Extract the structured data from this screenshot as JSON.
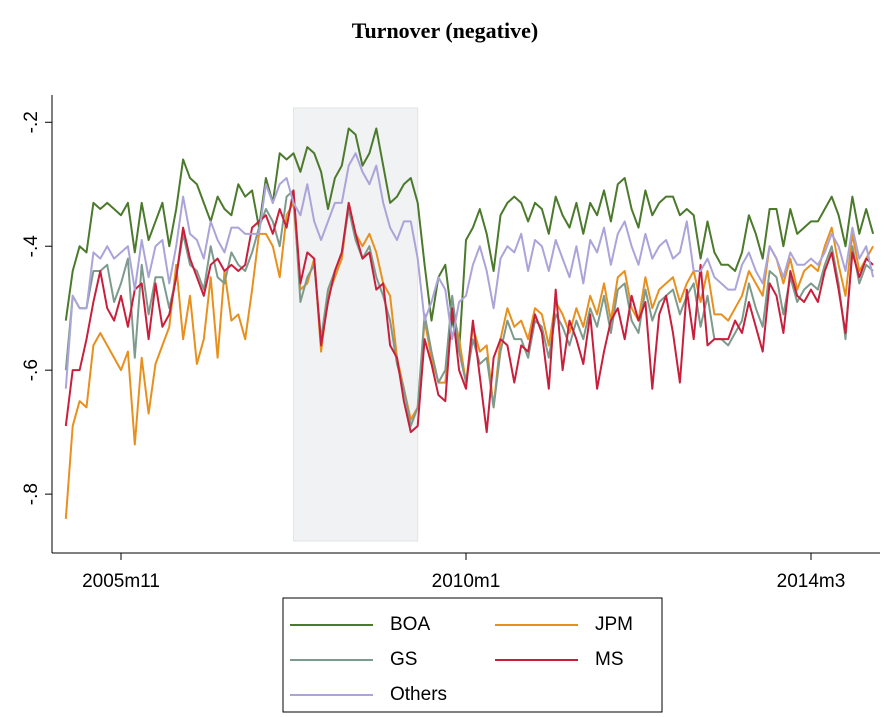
{
  "chart_data": {
    "type": "line",
    "title": "Turnover (negative)",
    "x": [
      "2005m3",
      "2005m4",
      "2005m5",
      "2005m6",
      "2005m7",
      "2005m8",
      "2005m9",
      "2005m10",
      "2005m11",
      "2005m12",
      "2006m1",
      "2006m2",
      "2006m3",
      "2006m4",
      "2006m5",
      "2006m6",
      "2006m7",
      "2006m8",
      "2006m9",
      "2006m10",
      "2006m11",
      "2006m12",
      "2007m1",
      "2007m2",
      "2007m3",
      "2007m4",
      "2007m5",
      "2007m6",
      "2007m7",
      "2007m8",
      "2007m9",
      "2007m10",
      "2007m11",
      "2007m12",
      "2008m1",
      "2008m2",
      "2008m3",
      "2008m4",
      "2008m5",
      "2008m6",
      "2008m7",
      "2008m8",
      "2008m9",
      "2008m10",
      "2008m11",
      "2008m12",
      "2009m1",
      "2009m2",
      "2009m3",
      "2009m4",
      "2009m5",
      "2009m6",
      "2009m7",
      "2009m8",
      "2009m9",
      "2009m10",
      "2009m11",
      "2009m12",
      "2010m1",
      "2010m2",
      "2010m3",
      "2010m4",
      "2010m5",
      "2010m6",
      "2010m7",
      "2010m8",
      "2010m9",
      "2010m10",
      "2010m11",
      "2010m12",
      "2011m1",
      "2011m2",
      "2011m3",
      "2011m4",
      "2011m5",
      "2011m6",
      "2011m7",
      "2011m8",
      "2011m9",
      "2011m10",
      "2011m11",
      "2011m12",
      "2012m1",
      "2012m2",
      "2012m3",
      "2012m4",
      "2012m5",
      "2012m6",
      "2012m7",
      "2012m8",
      "2012m9",
      "2012m10",
      "2012m11",
      "2012m12",
      "2013m1",
      "2013m2",
      "2013m3",
      "2013m4",
      "2013m5",
      "2013m6",
      "2013m7",
      "2013m8",
      "2013m9",
      "2013m10",
      "2013m11",
      "2013m12",
      "2014m1",
      "2014m2",
      "2014m3",
      "2014m4",
      "2014m5",
      "2014m6",
      "2014m7",
      "2014m8",
      "2014m9",
      "2014m10",
      "2014m11",
      "2014m12"
    ],
    "series": [
      {
        "name": "BOA",
        "color": "#4b7a2c",
        "values": [
          -0.52,
          -0.44,
          -0.4,
          -0.41,
          -0.33,
          -0.34,
          -0.33,
          -0.34,
          -0.35,
          -0.33,
          -0.41,
          -0.33,
          -0.39,
          -0.36,
          -0.33,
          -0.4,
          -0.34,
          -0.26,
          -0.29,
          -0.3,
          -0.33,
          -0.36,
          -0.32,
          -0.34,
          -0.35,
          -0.3,
          -0.32,
          -0.31,
          -0.37,
          -0.29,
          -0.33,
          -0.25,
          -0.26,
          -0.25,
          -0.28,
          -0.24,
          -0.25,
          -0.28,
          -0.34,
          -0.29,
          -0.27,
          -0.21,
          -0.22,
          -0.27,
          -0.25,
          -0.21,
          -0.27,
          -0.33,
          -0.32,
          -0.3,
          -0.29,
          -0.33,
          -0.43,
          -0.52,
          -0.45,
          -0.43,
          -0.52,
          -0.57,
          -0.39,
          -0.37,
          -0.34,
          -0.38,
          -0.44,
          -0.35,
          -0.33,
          -0.32,
          -0.33,
          -0.36,
          -0.33,
          -0.34,
          -0.38,
          -0.32,
          -0.35,
          -0.37,
          -0.33,
          -0.38,
          -0.33,
          -0.35,
          -0.31,
          -0.36,
          -0.3,
          -0.29,
          -0.34,
          -0.37,
          -0.31,
          -0.35,
          -0.33,
          -0.32,
          -0.32,
          -0.35,
          -0.34,
          -0.35,
          -0.42,
          -0.36,
          -0.41,
          -0.43,
          -0.43,
          -0.44,
          -0.41,
          -0.35,
          -0.38,
          -0.42,
          -0.34,
          -0.34,
          -0.4,
          -0.34,
          -0.38,
          -0.37,
          -0.36,
          -0.36,
          -0.34,
          -0.32,
          -0.35,
          -0.4,
          -0.32,
          -0.38,
          -0.34,
          -0.38
        ]
      },
      {
        "name": "JPM",
        "color": "#e8901e",
        "values": [
          -0.84,
          -0.69,
          -0.65,
          -0.66,
          -0.56,
          -0.54,
          -0.56,
          -0.58,
          -0.6,
          -0.57,
          -0.72,
          -0.58,
          -0.67,
          -0.59,
          -0.56,
          -0.53,
          -0.43,
          -0.55,
          -0.48,
          -0.59,
          -0.55,
          -0.45,
          -0.58,
          -0.44,
          -0.52,
          -0.51,
          -0.55,
          -0.47,
          -0.38,
          -0.38,
          -0.4,
          -0.45,
          -0.35,
          -0.33,
          -0.47,
          -0.46,
          -0.42,
          -0.57,
          -0.48,
          -0.45,
          -0.42,
          -0.33,
          -0.38,
          -0.4,
          -0.38,
          -0.41,
          -0.46,
          -0.48,
          -0.58,
          -0.63,
          -0.68,
          -0.66,
          -0.52,
          -0.58,
          -0.62,
          -0.62,
          -0.5,
          -0.55,
          -0.62,
          -0.53,
          -0.57,
          -0.56,
          -0.66,
          -0.55,
          -0.5,
          -0.53,
          -0.52,
          -0.55,
          -0.5,
          -0.51,
          -0.56,
          -0.49,
          -0.51,
          -0.54,
          -0.5,
          -0.53,
          -0.48,
          -0.51,
          -0.46,
          -0.52,
          -0.45,
          -0.44,
          -0.5,
          -0.52,
          -0.45,
          -0.5,
          -0.47,
          -0.46,
          -0.45,
          -0.49,
          -0.46,
          -0.44,
          -0.49,
          -0.44,
          -0.51,
          -0.51,
          -0.52,
          -0.5,
          -0.48,
          -0.44,
          -0.46,
          -0.48,
          -0.4,
          -0.42,
          -0.46,
          -0.42,
          -0.47,
          -0.44,
          -0.43,
          -0.44,
          -0.4,
          -0.37,
          -0.43,
          -0.48,
          -0.38,
          -0.44,
          -0.42,
          -0.4
        ]
      },
      {
        "name": "GS",
        "color": "#7d9b8c",
        "values": [
          -0.6,
          -0.48,
          -0.5,
          -0.5,
          -0.44,
          -0.44,
          -0.43,
          -0.49,
          -0.46,
          -0.42,
          -0.58,
          -0.43,
          -0.51,
          -0.45,
          -0.45,
          -0.5,
          -0.45,
          -0.38,
          -0.43,
          -0.44,
          -0.47,
          -0.4,
          -0.45,
          -0.46,
          -0.41,
          -0.43,
          -0.44,
          -0.41,
          -0.37,
          -0.34,
          -0.36,
          -0.4,
          -0.32,
          -0.31,
          -0.49,
          -0.45,
          -0.43,
          -0.55,
          -0.47,
          -0.44,
          -0.41,
          -0.34,
          -0.39,
          -0.42,
          -0.4,
          -0.45,
          -0.48,
          -0.52,
          -0.59,
          -0.63,
          -0.69,
          -0.66,
          -0.51,
          -0.57,
          -0.62,
          -0.6,
          -0.48,
          -0.57,
          -0.62,
          -0.55,
          -0.59,
          -0.58,
          -0.66,
          -0.57,
          -0.52,
          -0.55,
          -0.55,
          -0.58,
          -0.52,
          -0.53,
          -0.58,
          -0.51,
          -0.53,
          -0.56,
          -0.52,
          -0.55,
          -0.5,
          -0.53,
          -0.48,
          -0.54,
          -0.47,
          -0.46,
          -0.52,
          -0.54,
          -0.47,
          -0.52,
          -0.49,
          -0.48,
          -0.47,
          -0.51,
          -0.48,
          -0.46,
          -0.53,
          -0.48,
          -0.55,
          -0.55,
          -0.56,
          -0.54,
          -0.52,
          -0.46,
          -0.5,
          -0.53,
          -0.44,
          -0.45,
          -0.51,
          -0.45,
          -0.49,
          -0.47,
          -0.46,
          -0.47,
          -0.43,
          -0.4,
          -0.46,
          -0.55,
          -0.4,
          -0.46,
          -0.43,
          -0.44
        ]
      },
      {
        "name": "MS",
        "color": "#c8203c",
        "values": [
          -0.69,
          -0.6,
          -0.6,
          -0.55,
          -0.49,
          -0.44,
          -0.5,
          -0.52,
          -0.48,
          -0.53,
          -0.47,
          -0.46,
          -0.55,
          -0.46,
          -0.53,
          -0.51,
          -0.45,
          -0.37,
          -0.42,
          -0.45,
          -0.48,
          -0.43,
          -0.42,
          -0.44,
          -0.43,
          -0.44,
          -0.43,
          -0.37,
          -0.36,
          -0.35,
          -0.38,
          -0.34,
          -0.37,
          -0.31,
          -0.46,
          -0.41,
          -0.42,
          -0.56,
          -0.49,
          -0.44,
          -0.41,
          -0.33,
          -0.38,
          -0.42,
          -0.41,
          -0.47,
          -0.46,
          -0.56,
          -0.58,
          -0.65,
          -0.7,
          -0.69,
          -0.55,
          -0.59,
          -0.64,
          -0.65,
          -0.5,
          -0.6,
          -0.63,
          -0.52,
          -0.61,
          -0.7,
          -0.58,
          -0.55,
          -0.56,
          -0.62,
          -0.56,
          -0.57,
          -0.51,
          -0.54,
          -0.63,
          -0.47,
          -0.6,
          -0.52,
          -0.55,
          -0.59,
          -0.51,
          -0.63,
          -0.57,
          -0.52,
          -0.5,
          -0.55,
          -0.48,
          -0.52,
          -0.49,
          -0.63,
          -0.51,
          -0.48,
          -0.54,
          -0.62,
          -0.47,
          -0.55,
          -0.43,
          -0.56,
          -0.55,
          -0.55,
          -0.55,
          -0.52,
          -0.54,
          -0.49,
          -0.53,
          -0.57,
          -0.46,
          -0.48,
          -0.54,
          -0.44,
          -0.48,
          -0.49,
          -0.47,
          -0.49,
          -0.44,
          -0.41,
          -0.47,
          -0.54,
          -0.41,
          -0.45,
          -0.42,
          -0.43
        ]
      },
      {
        "name": "Others",
        "color": "#aaa4d9",
        "values": [
          -0.63,
          -0.48,
          -0.5,
          -0.5,
          -0.41,
          -0.42,
          -0.4,
          -0.42,
          -0.41,
          -0.4,
          -0.47,
          -0.39,
          -0.45,
          -0.4,
          -0.39,
          -0.46,
          -0.4,
          -0.32,
          -0.38,
          -0.39,
          -0.42,
          -0.36,
          -0.39,
          -0.41,
          -0.37,
          -0.37,
          -0.38,
          -0.38,
          -0.38,
          -0.3,
          -0.33,
          -0.3,
          -0.29,
          -0.33,
          -0.35,
          -0.3,
          -0.36,
          -0.39,
          -0.36,
          -0.33,
          -0.33,
          -0.27,
          -0.25,
          -0.28,
          -0.3,
          -0.27,
          -0.33,
          -0.37,
          -0.39,
          -0.36,
          -0.36,
          -0.42,
          -0.52,
          -0.49,
          -0.45,
          -0.47,
          -0.55,
          -0.49,
          -0.48,
          -0.43,
          -0.4,
          -0.44,
          -0.5,
          -0.42,
          -0.4,
          -0.41,
          -0.38,
          -0.44,
          -0.39,
          -0.4,
          -0.44,
          -0.39,
          -0.42,
          -0.45,
          -0.4,
          -0.46,
          -0.39,
          -0.41,
          -0.37,
          -0.43,
          -0.38,
          -0.36,
          -0.4,
          -0.43,
          -0.38,
          -0.42,
          -0.4,
          -0.39,
          -0.42,
          -0.41,
          -0.36,
          -0.44,
          -0.44,
          -0.42,
          -0.45,
          -0.46,
          -0.47,
          -0.47,
          -0.43,
          -0.41,
          -0.44,
          -0.46,
          -0.4,
          -0.42,
          -0.45,
          -0.41,
          -0.43,
          -0.43,
          -0.42,
          -0.43,
          -0.41,
          -0.38,
          -0.4,
          -0.44,
          -0.37,
          -0.42,
          -0.4,
          -0.45
        ]
      }
    ],
    "xlim": [
      "2005m1",
      "2015m1"
    ],
    "xticks": [
      "2005m11",
      "2010m1",
      "2014m3"
    ],
    "ylim": [
      -0.895,
      -0.156
    ],
    "yticks": [
      {
        "value": -0.8,
        "label": "-.8"
      },
      {
        "value": -0.6,
        "label": "-.6"
      },
      {
        "value": -0.4,
        "label": "-.4"
      },
      {
        "value": -0.2,
        "label": "-.2"
      }
    ],
    "shaded_period": [
      "2007m12",
      "2009m6"
    ],
    "shade_color": "#f1f2f3",
    "legend": "bottom"
  }
}
